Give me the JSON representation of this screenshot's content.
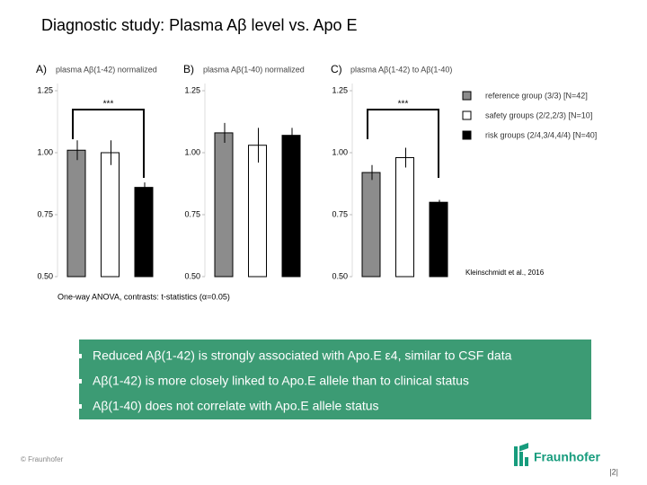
{
  "title": "Diagnostic study: Plasma Aβ level vs. Apo E",
  "chart_data": [
    {
      "type": "bar",
      "label": "A)",
      "title": "plasma Aβ(1-42) normalized",
      "categories": [
        null,
        null,
        null
      ],
      "values": [
        1.01,
        1.0,
        0.86
      ],
      "errors": [
        0.04,
        0.05,
        0.02
      ],
      "colors": [
        "#8c8c8c",
        "#ffffff",
        "#000000"
      ],
      "ylim": [
        0.5,
        1.25
      ],
      "yticks": [
        {
          "value": 0.5,
          "label": "0.50"
        },
        0.75,
        {
          "value": 1,
          "label": "1.00"
        },
        1.25
      ],
      "annotation": "***"
    },
    {
      "type": "bar",
      "label": "B)",
      "title": "plasma Aβ(1-40) normalized",
      "categories": [
        null,
        null,
        null
      ],
      "values": [
        1.08,
        1.03,
        1.07
      ],
      "errors": [
        0.04,
        0.07,
        0.03
      ],
      "colors": [
        "#8c8c8c",
        "#ffffff",
        "#000000"
      ],
      "ylim": [
        0.5,
        1.25
      ],
      "yticks": [
        {
          "value": 0.5,
          "label": "0.50"
        },
        0.75,
        {
          "value": 1,
          "label": "1.00"
        },
        1.25
      ]
    },
    {
      "type": "bar",
      "label": "C)",
      "title": "plasma Aβ(1-42) to Aβ(1-40)",
      "categories": [
        null,
        null,
        null
      ],
      "values": [
        0.92,
        0.98,
        0.8
      ],
      "errors": [
        0.03,
        0.04,
        0.01
      ],
      "colors": [
        "#8c8c8c",
        "#ffffff",
        "#000000"
      ],
      "ylim": [
        0.5,
        1.25
      ],
      "yticks": [
        {
          "value": 0.5,
          "label": "0.50"
        },
        0.75,
        {
          "value": 1,
          "label": "1.00"
        },
        1.25
      ],
      "annotation": "***"
    }
  ],
  "legend": [
    {
      "label": "reference group (3/3) [N=42]",
      "color": "#8c8c8c"
    },
    {
      "label": "safety groups (2/2,2/3) [N=10]",
      "color": "#ffffff"
    },
    {
      "label": "risk groups (2/4,3/4,4/4) [N=40]",
      "color": "#000000"
    }
  ],
  "citation": "Kleinschmidt et al., 2016",
  "note": "One-way ANOVA, contrasts: t-statistics (α=0.05)",
  "bullets": [
    "Reduced Aβ(1-42) is strongly associated with Apo.E ε4, similar to CSF data",
    "Aβ(1-42) is more closely linked to Apo.E allele than to clinical status",
    "Aβ(1-40) does not correlate with Apo.E allele status"
  ],
  "footer": "© Fraunhofer",
  "logo": "Fraunhofer",
  "page_number": "|2|"
}
